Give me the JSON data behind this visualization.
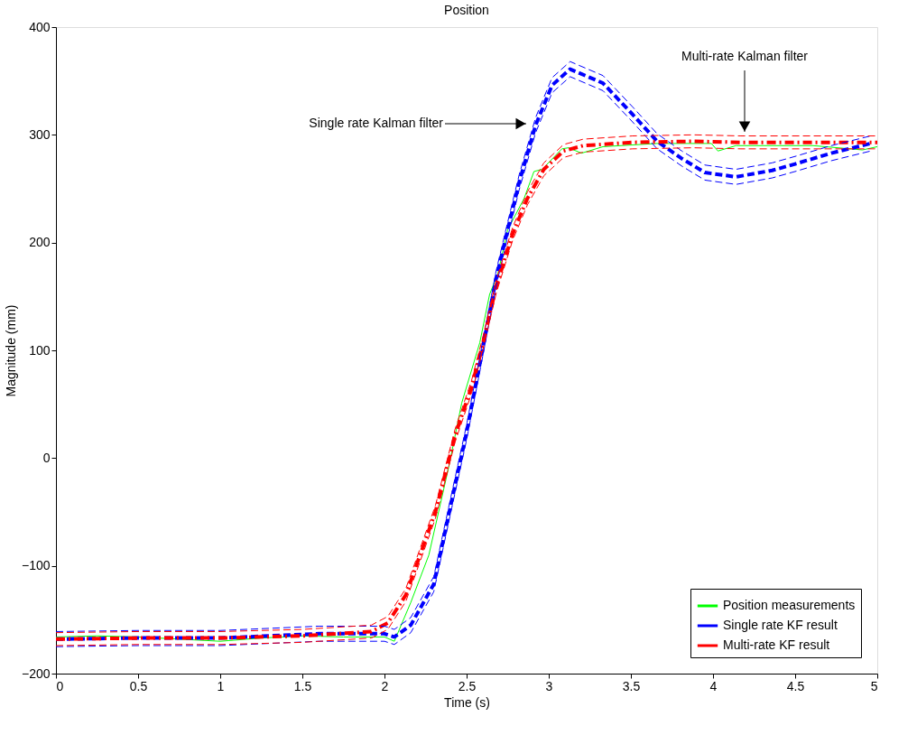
{
  "chart_data": {
    "type": "line",
    "title": "Position",
    "xlabel": "Time (s)",
    "ylabel": "Magnitude (mm)",
    "xlim": [
      0,
      5
    ],
    "ylim": [
      -200,
      400
    ],
    "xticks": [
      0,
      0.5,
      1,
      1.5,
      2,
      2.5,
      3,
      3.5,
      4,
      4.5,
      5
    ],
    "yticks": [
      -200,
      -100,
      0,
      100,
      200,
      300,
      400
    ],
    "grid": false,
    "legend": "bottom right",
    "marker": "none",
    "series": [
      {
        "name": "Position measurements",
        "color": "#00ff00",
        "line_style": "solid",
        "x": [
          0,
          0.25,
          0.5,
          0.75,
          1.0,
          1.25,
          1.5,
          1.75,
          2.0,
          2.06,
          2.16,
          2.27,
          2.39,
          2.47,
          2.58,
          2.64,
          2.69,
          2.75,
          2.85,
          2.91,
          2.96,
          3.08,
          3.12,
          3.2,
          3.33,
          3.66,
          3.99,
          4.03,
          4.14,
          4.61,
          4.91,
          5.0
        ],
        "values": [
          -166,
          -165,
          -166,
          -168,
          -170,
          -167,
          -165,
          -166,
          -166,
          -170,
          -134,
          -90,
          -9,
          51,
          107,
          152,
          171,
          212,
          241,
          266,
          268,
          287,
          288,
          283,
          289,
          292,
          292,
          285,
          290,
          290,
          286,
          289
        ]
      },
      {
        "name": "Single rate KF result",
        "color": "#0000ff",
        "line_style": "dashed",
        "x": [
          0,
          0.5,
          1.0,
          1.3,
          1.6,
          2.0,
          2.06,
          2.16,
          2.3,
          2.41,
          2.5,
          2.6,
          2.68,
          2.75,
          2.82,
          2.92,
          3.02,
          3.13,
          3.33,
          3.51,
          3.66,
          3.81,
          3.95,
          4.14,
          4.36,
          4.5,
          4.72,
          4.96
        ],
        "values": [
          -168,
          -167,
          -167,
          -165,
          -163,
          -163,
          -166,
          -155,
          -117,
          -39,
          24,
          103,
          167,
          212,
          256,
          309,
          346,
          361,
          348,
          319,
          294,
          278,
          265,
          261,
          267,
          273,
          283,
          292
        ]
      },
      {
        "name": "Multi-rate KF result",
        "color": "#ff0000",
        "line_style": "dashdot",
        "x": [
          0,
          0.5,
          1.0,
          1.5,
          1.92,
          2.02,
          2.13,
          2.31,
          2.43,
          2.53,
          2.6,
          2.68,
          2.78,
          2.87,
          2.97,
          3.09,
          3.21,
          3.51,
          3.88,
          4.17,
          4.61,
          5.0
        ],
        "values": [
          -168,
          -167,
          -167,
          -165,
          -161,
          -153,
          -127,
          -50,
          21,
          66,
          107,
          159,
          208,
          241,
          268,
          285,
          290,
          293,
          294,
          293,
          293,
          293
        ]
      },
      {
        "color": "#0000ff",
        "line_style": "dashed",
        "x": [
          0,
          0.5,
          1.0,
          1.3,
          1.6,
          2.0,
          2.06,
          2.16,
          2.3,
          2.41,
          2.5,
          2.6,
          2.68,
          2.75,
          2.82,
          2.92,
          3.02,
          3.13,
          3.33,
          3.51,
          3.66,
          3.81,
          3.95,
          4.14,
          4.36,
          4.5,
          4.72,
          4.96
        ],
        "values": [
          -175,
          -174,
          -174,
          -172,
          -170,
          -170,
          -173,
          -162,
          -124,
          -46,
          17,
          96,
          160,
          205,
          249,
          302,
          339,
          354,
          341,
          312,
          287,
          271,
          258,
          254,
          260,
          266,
          276,
          285
        ]
      },
      {
        "color": "#0000ff",
        "line_style": "dashed",
        "x": [
          0,
          0.5,
          1.0,
          1.3,
          1.6,
          2.0,
          2.06,
          2.16,
          2.3,
          2.41,
          2.5,
          2.6,
          2.68,
          2.75,
          2.82,
          2.92,
          3.02,
          3.13,
          3.33,
          3.51,
          3.66,
          3.81,
          3.95,
          4.14,
          4.36,
          4.5,
          4.72,
          4.96
        ],
        "values": [
          -161,
          -160,
          -160,
          -158,
          -156,
          -156,
          -159,
          -148,
          -110,
          -32,
          31,
          110,
          174,
          219,
          263,
          316,
          353,
          368,
          355,
          326,
          301,
          285,
          272,
          268,
          274,
          280,
          290,
          299
        ]
      },
      {
        "color": "#ff0000",
        "line_style": "dashed",
        "x": [
          0,
          0.5,
          1.0,
          1.5,
          1.92,
          2.02,
          2.13,
          2.31,
          2.43,
          2.53,
          2.6,
          2.68,
          2.78,
          2.87,
          2.97,
          3.09,
          3.21,
          3.51,
          3.88,
          4.17,
          4.61,
          5.0
        ],
        "values": [
          -174,
          -173,
          -173,
          -171,
          -167,
          -159,
          -133,
          -56,
          15,
          60,
          101,
          153,
          202,
          235,
          262,
          279,
          284,
          287,
          288,
          287,
          287,
          287
        ]
      },
      {
        "color": "#ff0000",
        "line_style": "dashed",
        "x": [
          0,
          0.5,
          1.0,
          1.5,
          1.92,
          2.02,
          2.13,
          2.31,
          2.43,
          2.53,
          2.6,
          2.68,
          2.78,
          2.87,
          2.97,
          3.09,
          3.21,
          3.51,
          3.88,
          4.17,
          4.61,
          5.0
        ],
        "values": [
          -162,
          -161,
          -161,
          -159,
          -155,
          -147,
          -121,
          -44,
          27,
          72,
          113,
          165,
          214,
          247,
          274,
          291,
          296,
          299,
          300,
          299,
          299,
          299
        ]
      }
    ],
    "annotations": [
      "Single rate Kalman filter",
      "Multi-rate Kalman filter"
    ]
  }
}
